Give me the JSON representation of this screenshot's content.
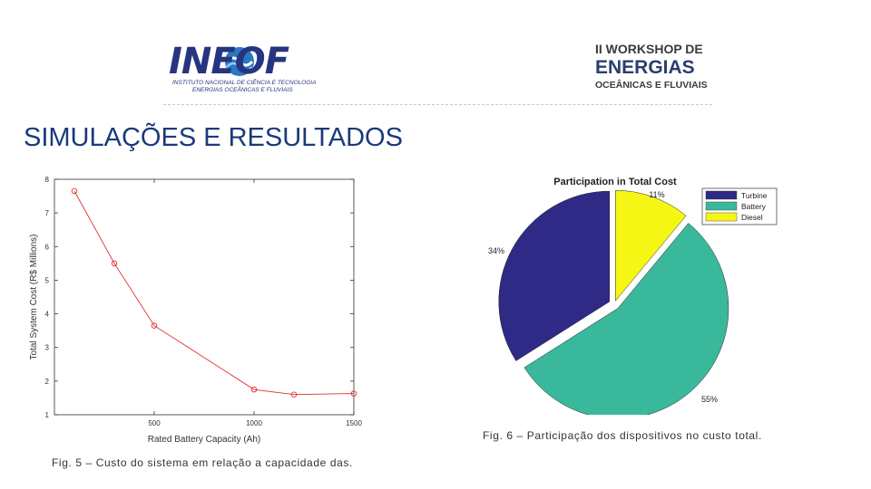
{
  "header": {
    "logo_left": {
      "wordmark": "INEOF",
      "line1": "INSTITUTO NACIONAL DE CIÊNCIA E TECNOLOGIA",
      "line2": "ENERGIAS OCEÂNICAS E FLUVIAIS"
    },
    "logo_right": {
      "line1": "II WORKSHOP DE",
      "line2": "ENERGIAS",
      "line3": "OCEÂNICAS E FLUVIAIS"
    }
  },
  "page_title": "SIMULAÇÕES E RESULTADOS",
  "captions": {
    "fig5": "Fig. 5 – Custo do sistema em relação a capacidade das.",
    "fig6": "Fig. 6 – Participação dos dispositivos no custo total."
  },
  "colors": {
    "title": "#1a3a7a",
    "line": "#e03030",
    "turbine": "#2f2a86",
    "battery": "#3ab89c",
    "diesel": "#f6f614"
  },
  "chart_data": [
    {
      "type": "line",
      "title": "",
      "xlabel": "Rated Battery Capacity (Ah)",
      "ylabel": "Total System Cost (R$ Millions)",
      "xlim": [
        0,
        1500
      ],
      "ylim": [
        1,
        8
      ],
      "xticks": [
        500,
        1000,
        1500
      ],
      "yticks": [
        1,
        2,
        3,
        4,
        5,
        6,
        7,
        8
      ],
      "grid": false,
      "series": [
        {
          "x": [
            100,
            300,
            500,
            1000,
            1200,
            1500
          ],
          "y": [
            7.65,
            5.5,
            3.65,
            1.75,
            1.6,
            1.63
          ]
        }
      ]
    },
    {
      "type": "pie",
      "title": "Participation in Total Cost",
      "legend_position": "top-right",
      "categories": [
        "Turbine",
        "Battery",
        "Diesel"
      ],
      "values": [
        34,
        55,
        11
      ],
      "labels": [
        "34%",
        "55%",
        "11%"
      ]
    }
  ]
}
